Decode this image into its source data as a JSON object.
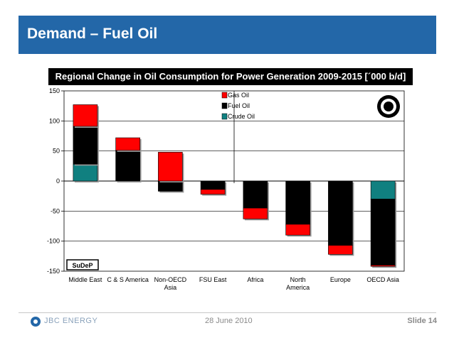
{
  "slide": {
    "title": "Demand – Fuel Oil",
    "date": "28 June 2010",
    "slide_number": "Slide 14",
    "company": "JBC ENERGY",
    "stamp_text": "SuDeP"
  },
  "colors": {
    "title_bar": "#2367a8",
    "gas_oil": "#ff0000",
    "fuel_oil": "#000000",
    "crude_oil": "#108080"
  },
  "chart_data": {
    "type": "bar",
    "stacked": true,
    "title": "Regional Change in Oil Consumption for Power Generation 2009-2015 [´000 b/d]",
    "categories": [
      "Middle East",
      "C & S America",
      "Non-OECD Asia",
      "FSU East",
      "Africa",
      "North America",
      "Europe",
      "OECD Asia"
    ],
    "category_lines": [
      [
        "Middle East"
      ],
      [
        "C & S America"
      ],
      [
        "Non-OECD",
        "Asia"
      ],
      [
        "FSU East"
      ],
      [
        "Africa"
      ],
      [
        "North",
        "America"
      ],
      [
        "Europe"
      ],
      [
        "OECD Asia"
      ]
    ],
    "series": [
      {
        "name": "Crude Oil",
        "color": "#108080",
        "values": [
          28,
          0,
          0,
          0,
          0,
          0,
          0,
          -30
        ]
      },
      {
        "name": "Fuel Oil",
        "color": "#000000",
        "values": [
          63,
          51,
          -17,
          -14,
          -45,
          -72,
          -107,
          -110
        ]
      },
      {
        "name": "Gas Oil",
        "color": "#ff0000",
        "values": [
          36,
          21,
          48,
          -8,
          -18,
          -18,
          -15,
          -2
        ]
      }
    ],
    "legend_order": [
      "Gas Oil",
      "Fuel Oil",
      "Crude Oil"
    ],
    "legend_position": "top-center",
    "ylim": [
      -150,
      150
    ],
    "yticks": [
      150,
      100,
      50,
      0,
      -50,
      -100,
      -150
    ],
    "grid": true
  }
}
